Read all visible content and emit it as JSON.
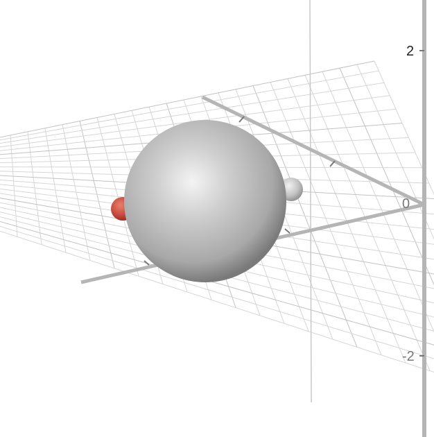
{
  "scene": {
    "type": "3d-graph",
    "grid": true,
    "vertical_axis_ticks": [
      {
        "value": 2,
        "label": "2"
      },
      {
        "value": -2,
        "label": "-2"
      }
    ],
    "origin_label": "0",
    "objects": [
      {
        "name": "large-sphere",
        "color": "#b8b8b8"
      },
      {
        "name": "small-gray-sphere",
        "color": "#c4c4c4"
      },
      {
        "name": "small-red-sphere",
        "color": "#c0392b"
      }
    ]
  }
}
